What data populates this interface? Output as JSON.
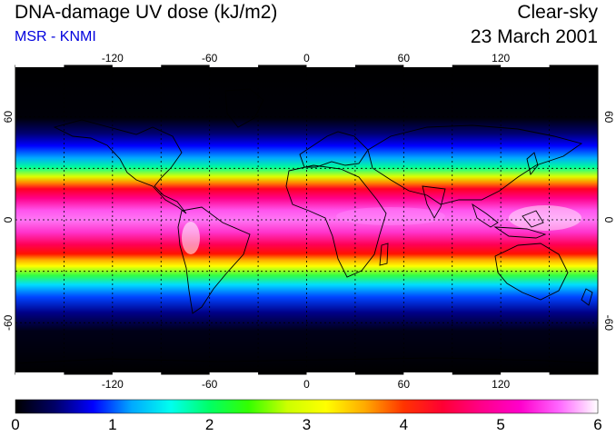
{
  "header": {
    "title": "DNA-damage UV dose (kJ/m2)",
    "subtitle": "MSR - KNMI",
    "subtitle_color": "#0000dd",
    "condition": "Clear-sky",
    "date": "23 March 2001"
  },
  "map": {
    "projection": "equirectangular",
    "lon_range": [
      -180,
      180
    ],
    "lat_range": [
      -90,
      90
    ],
    "graticule": "dashed",
    "lon_ticks": [
      "-120",
      "-60",
      "0",
      "60",
      "120"
    ],
    "lat_ticks": [
      "60",
      "0",
      "-60"
    ],
    "lat_ticks_right": [
      "60",
      "0",
      "-60"
    ],
    "coastlines": true
  },
  "colorbar": {
    "min": 0,
    "max": 6,
    "labels": [
      "0",
      "1",
      "2",
      "3",
      "4",
      "5",
      "6"
    ],
    "colors": [
      "#000000",
      "#000066",
      "#0000ff",
      "#00aaff",
      "#00ffee",
      "#00ff66",
      "#33ff00",
      "#ccff00",
      "#ffff00",
      "#ffaa00",
      "#ff3300",
      "#ff0033",
      "#ff0088",
      "#ff00cc",
      "#ff66ff",
      "#ffffff"
    ]
  }
}
